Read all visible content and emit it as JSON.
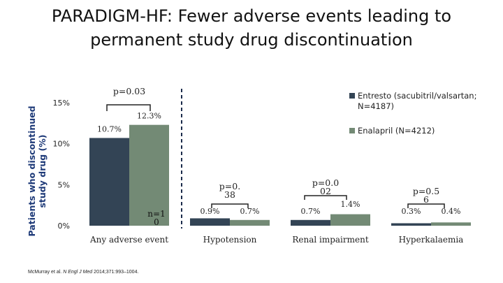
{
  "title_lines": [
    "PARADIGM-HF: Fewer adverse events leading to",
    "permanent study drug discontinuation"
  ],
  "citation": {
    "authors": "McMurray et al.",
    "journal": "N Engl J Med",
    "ref": "2014;371:993–1004."
  },
  "colors": {
    "entresto": "#334455",
    "enalapril": "#738a75",
    "divider": "#1b2b4b"
  },
  "chart_data": {
    "type": "bar",
    "ylabel_lines": [
      "Patients who discontinued",
      "study drug (%)"
    ],
    "ylim": [
      0,
      15
    ],
    "yticks": [
      {
        "value": 0,
        "label": "0%"
      },
      {
        "value": 5,
        "label": "5%"
      },
      {
        "value": 10,
        "label": "10%"
      },
      {
        "value": 15,
        "label": "15%"
      }
    ],
    "categories": [
      "Any adverse event",
      "Hypotension",
      "Renal impairment",
      "Hyperkalaemia"
    ],
    "series": [
      {
        "name_lines": [
          "Entresto (sacubitril/valsartan;",
          "N=4187)"
        ],
        "values": [
          10.7,
          0.9,
          0.7,
          0.3
        ],
        "labels": [
          "10.7%",
          "0.9%",
          "0.7%",
          "0.3%"
        ]
      },
      {
        "name_lines": [
          "Enalapril (N=4212)"
        ],
        "values": [
          12.3,
          0.7,
          1.4,
          0.4
        ],
        "labels": [
          "12.3%",
          "0.7%",
          "1.4%",
          "0.4%"
        ]
      }
    ],
    "p_values": [
      {
        "lines": [
          "p=0.03"
        ]
      },
      {
        "lines": [
          "p=0.",
          "38"
        ]
      },
      {
        "lines": [
          "p=0.0",
          "02"
        ]
      },
      {
        "lines": [
          "p=0.5",
          "6"
        ]
      }
    ],
    "annotations": [
      {
        "lines": [
          "n=1",
          "0"
        ]
      }
    ],
    "grid": false,
    "legend_position": "top-right"
  }
}
